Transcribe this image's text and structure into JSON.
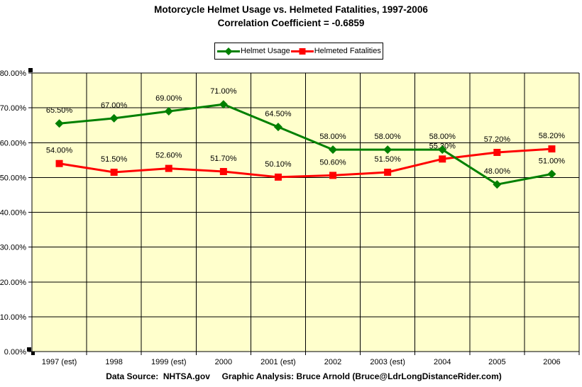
{
  "chart_data": {
    "type": "line",
    "title": "Motorcycle Helmet Usage vs. Helmeted Fatalities, 1997-2006",
    "subtitle": "Correlation Coefficient = -0.6859",
    "caption": "Data Source:  NHTSA.gov     Graphic Analysis: Bruce Arnold (Bruce@LdrLongDistanceRider.com)",
    "categories": [
      "1997 (est)",
      "1998",
      "1999 (est)",
      "2000",
      "2001 (est)",
      "2002",
      "2003 (est)",
      "2004",
      "2005",
      "2006"
    ],
    "y_ticks": [
      "0.00%",
      "10.00%",
      "20.00%",
      "30.00%",
      "40.00%",
      "50.00%",
      "60.00%",
      "70.00%",
      "80.00%"
    ],
    "ylim": [
      0,
      80
    ],
    "grid": true,
    "legend_position": "top-center",
    "colors": {
      "plot_bg": "#FFFFCC",
      "grid": "#000000",
      "helmet_usage": "#008000",
      "helmeted_fatalities": "#FF0000"
    },
    "series": [
      {
        "name": "Helmet Usage",
        "color": "#008000",
        "marker": "diamond",
        "values": [
          65.5,
          67.0,
          69.0,
          71.0,
          64.5,
          58.0,
          58.0,
          58.0,
          48.0,
          51.0
        ],
        "labels": [
          "65.50%",
          "67.00%",
          "69.00%",
          "71.00%",
          "64.50%",
          "58.00%",
          "58.00%",
          "58.00%",
          "48.00%",
          "51.00%"
        ]
      },
      {
        "name": "Helmeted Fatalities",
        "color": "#FF0000",
        "marker": "square",
        "values": [
          54.0,
          51.5,
          52.6,
          51.7,
          50.1,
          50.6,
          51.5,
          55.3,
          57.2,
          58.2
        ],
        "labels": [
          "54.00%",
          "51.50%",
          "52.60%",
          "51.70%",
          "50.10%",
          "50.60%",
          "51.50%",
          "55.30%",
          "57.20%",
          "58.20%"
        ]
      }
    ]
  }
}
